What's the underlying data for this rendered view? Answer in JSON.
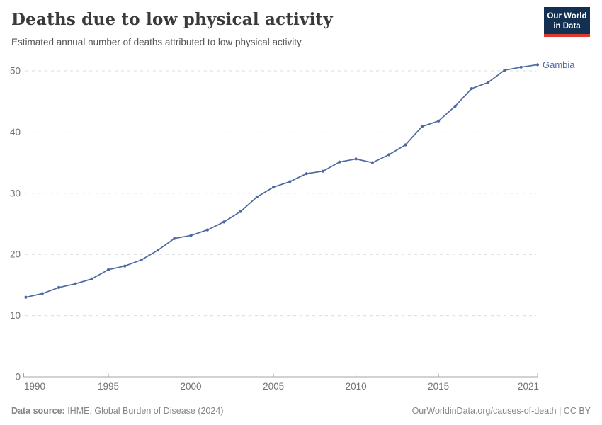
{
  "header": {
    "title": "Deaths due to low physical activity",
    "subtitle": "Estimated annual number of deaths attributed to low physical activity.",
    "logo_line1": "Our World",
    "logo_line2": "in Data"
  },
  "chart_data": {
    "type": "line",
    "title": "Deaths due to low physical activity",
    "xlabel": "",
    "ylabel": "",
    "x": [
      1990,
      1991,
      1992,
      1993,
      1994,
      1995,
      1996,
      1997,
      1998,
      1999,
      2000,
      2001,
      2002,
      2003,
      2004,
      2005,
      2006,
      2007,
      2008,
      2009,
      2010,
      2011,
      2012,
      2013,
      2014,
      2015,
      2016,
      2017,
      2018,
      2019,
      2020,
      2021
    ],
    "series": [
      {
        "name": "Gambia",
        "color": "#4C6A9F",
        "values": [
          13.0,
          13.6,
          14.6,
          15.2,
          16.0,
          17.5,
          18.1,
          19.1,
          20.7,
          22.6,
          23.1,
          24.0,
          25.3,
          27.0,
          29.4,
          31.0,
          31.9,
          33.2,
          33.6,
          35.1,
          35.6,
          35.0,
          36.3,
          37.9,
          40.9,
          41.8,
          44.2,
          47.1,
          48.1,
          50.1,
          50.6,
          51.0
        ]
      }
    ],
    "x_ticks": [
      1990,
      1995,
      2000,
      2005,
      2010,
      2015,
      2021
    ],
    "y_ticks": [
      0,
      10,
      20,
      30,
      40,
      50
    ],
    "xlim": [
      1990,
      2021
    ],
    "ylim": [
      0,
      52
    ],
    "grid": "horizontal-dashed",
    "legend_position": "end-of-line-label"
  },
  "footer": {
    "source_label": "Data source:",
    "source_text": " IHME, Global Burden of Disease (2024)",
    "credit": "OurWorldinData.org/causes-of-death | CC BY"
  },
  "colors": {
    "series": "#4C6A9F",
    "title": "#3a3a3a",
    "subtitle": "#555555",
    "axis_label": "#737373",
    "axis_line": "#a5a5a5",
    "gridline": "#dcdcdc",
    "footer": "#858585",
    "logo_bg": "#132F52",
    "logo_accent": "#D93B30"
  }
}
